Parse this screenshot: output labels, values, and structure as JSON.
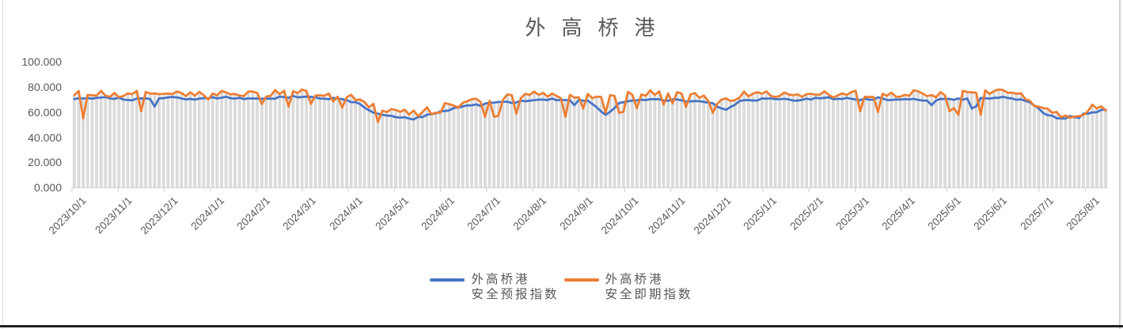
{
  "window": {
    "background": "#ffffff",
    "edge_color": "#d9d9d9",
    "bottom_border_color": "#222222"
  },
  "chart_data": {
    "type": "line",
    "title": "外高桥港",
    "title_color": "#595959",
    "text_color": "#595959",
    "axis_color": "#d6d6d6",
    "grid": "none",
    "legend_position": "bottom-center",
    "ylim": [
      0,
      100
    ],
    "y_tick_step": 20,
    "y_tick_labels": [
      "0.000",
      "20.000",
      "40.000",
      "60.000",
      "80.000",
      "100.000"
    ],
    "x_tick_labels": [
      "2023/10/1",
      "2023/11/1",
      "2023/12/1",
      "2024/1/1",
      "2024/2/1",
      "2024/3/1",
      "2024/4/1",
      "2024/5/1",
      "2024/6/1",
      "2024/7/1",
      "2024/8/1",
      "2024/9/1",
      "2024/10/1",
      "2024/11/1",
      "2024/12/1",
      "2025/1/1",
      "2025/2/1",
      "2025/3/1",
      "2025/4/1",
      "2025/5/1",
      "2025/6/1",
      "2025/7/1",
      "2025/8/1"
    ],
    "n_points": 232,
    "points_per_month_approx": 10,
    "background_droplines": {
      "color": "#dbdbdb"
    },
    "series": [
      {
        "name": "外高桥港安全预报指数",
        "label_line1": "外高桥港",
        "label_line2": "安全预报指数",
        "color": "#4472C4",
        "anchors_per_month": 3,
        "monthly_anchors": [
          71,
          71,
          72,
          71,
          70,
          71,
          72,
          71,
          70,
          71,
          72,
          71,
          70,
          71,
          72,
          72,
          71,
          71,
          70,
          65,
          58,
          56,
          55,
          57,
          60,
          63,
          65,
          66,
          68,
          68,
          69,
          70,
          70,
          70,
          69,
          57,
          68,
          70,
          70,
          70,
          69,
          68,
          67,
          62,
          69,
          70,
          71,
          70,
          70,
          71,
          71,
          71,
          70,
          71,
          70,
          71,
          70,
          70,
          70,
          71,
          71,
          72,
          71,
          68,
          58,
          55,
          57,
          60,
          62
        ],
        "volatility": 0.9,
        "dip_probability": 0.05,
        "dip_depth": [
          3,
          9
        ],
        "clamp": [
          52,
          74.5
        ]
      },
      {
        "name": "外高桥港安全即期指数",
        "label_line1": "外高桥港",
        "label_line2": "安全即期指数",
        "color": "#ED7D31",
        "anchors_per_month": 3,
        "monthly_anchors": [
          75,
          74,
          75,
          74,
          75,
          74,
          75,
          74,
          75,
          75,
          75,
          74,
          74,
          75,
          75,
          76,
          75,
          74,
          73,
          68,
          62,
          60,
          58,
          61,
          63,
          66,
          69,
          71,
          72,
          73,
          74,
          74,
          73,
          74,
          72,
          70,
          73,
          74,
          75,
          75,
          74,
          73,
          70,
          68,
          74,
          75,
          74,
          75,
          74,
          75,
          74,
          75,
          74,
          74,
          74,
          75,
          75,
          74,
          74,
          75,
          76,
          76,
          75,
          70,
          62,
          58,
          60,
          63,
          65
        ],
        "volatility": 2.6,
        "dip_probability": 0.17,
        "dip_depth": [
          6,
          18
        ],
        "clamp": [
          48,
          78
        ]
      }
    ]
  }
}
